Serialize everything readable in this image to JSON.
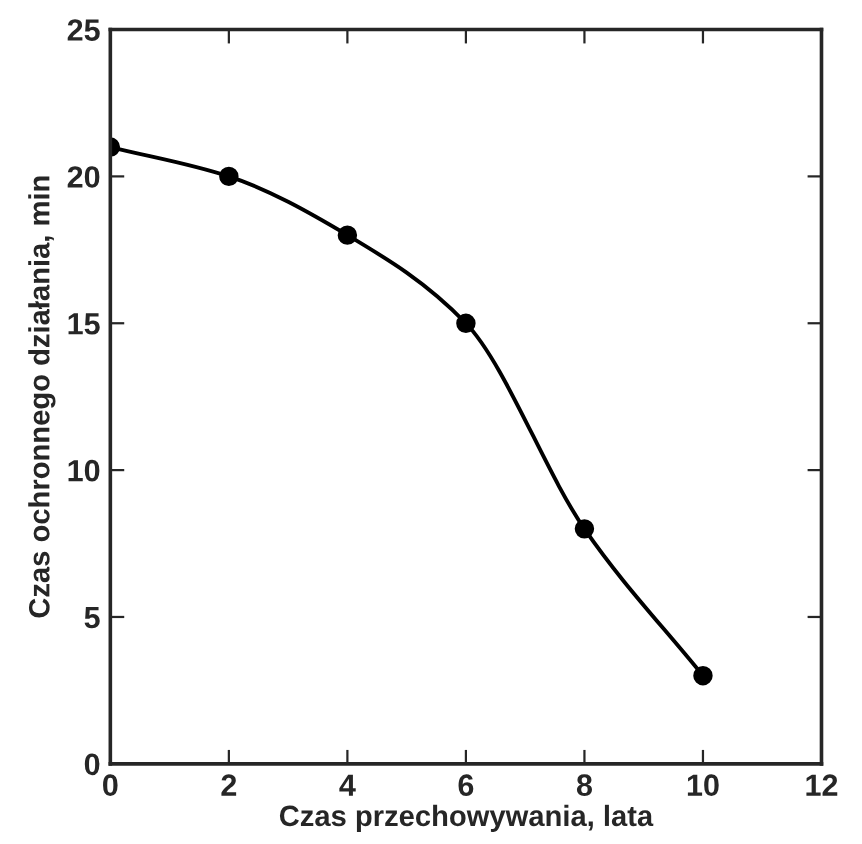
{
  "chart_data": {
    "type": "line",
    "xlabel": "Czas przechowywania, lata",
    "ylabel": "Czas ochronnego działania, min",
    "x": [
      0,
      2,
      4,
      6,
      8,
      10
    ],
    "series": [
      {
        "color": "#000000",
        "values": [
          21,
          20,
          18,
          15,
          8,
          3
        ]
      }
    ],
    "xlim": [
      0,
      12
    ],
    "xticks": [
      0,
      2,
      4,
      6,
      8,
      10,
      12
    ],
    "ylim": [
      0,
      25
    ],
    "yticks": [
      0,
      5,
      10,
      15,
      20,
      25
    ],
    "marker": "circle",
    "line_style": "solid",
    "grid": false
  }
}
